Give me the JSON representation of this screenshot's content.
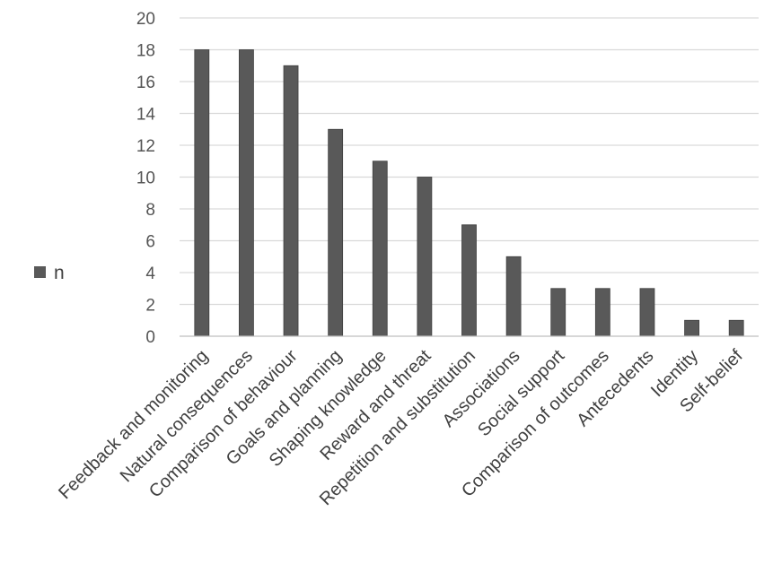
{
  "chart_data": {
    "type": "bar",
    "categories": [
      "Feedback and monitoring",
      "Natural consequences",
      "Comparison of behaviour",
      "Goals and planning",
      "Shaping knowledge",
      "Reward and threat",
      "Repetition and substitution",
      "Associations",
      "Social support",
      "Comparison of outcomes",
      "Antecedents",
      "Identity",
      "Self-belief"
    ],
    "series": [
      {
        "name": "n",
        "values": [
          18,
          18,
          17,
          13,
          11,
          10,
          7,
          5,
          3,
          3,
          3,
          1,
          1
        ]
      }
    ],
    "yticks": [
      "0",
      "2",
      "4",
      "6",
      "8",
      "10",
      "12",
      "14",
      "16",
      "18",
      "20"
    ],
    "ylim": [
      0,
      20
    ],
    "grid": true,
    "legend_position": "left",
    "colors": {
      "bar": "#595959",
      "grid": "#d9d9d9",
      "axis": "#bfbfbf"
    }
  }
}
